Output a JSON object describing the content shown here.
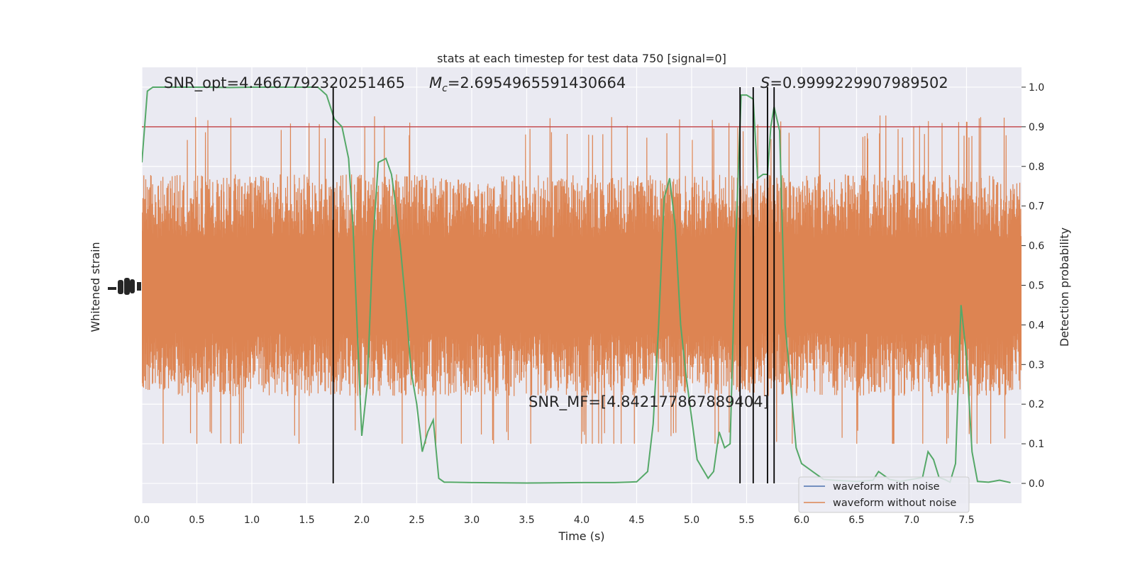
{
  "chart_data": {
    "type": "line",
    "title": "stats at each timestep for test data 750 [signal=0]",
    "xlabel": "Time (s)",
    "ylabel_left": "Whitened strain",
    "ylabel_right": "Detection probability",
    "xlim": [
      0,
      8
    ],
    "ylim_right": [
      -0.05,
      1.05
    ],
    "x_ticks": [
      "0.0",
      "0.5",
      "1.0",
      "1.5",
      "2.0",
      "2.5",
      "3.0",
      "3.5",
      "4.0",
      "4.5",
      "5.0",
      "5.5",
      "6.0",
      "6.5",
      "7.0",
      "7.5"
    ],
    "y_ticks_right": [
      "0.0",
      "0.1",
      "0.2",
      "0.3",
      "0.4",
      "0.5",
      "0.6",
      "0.7",
      "0.8",
      "0.9",
      "1.0"
    ],
    "annotations": {
      "snr_opt": "SNR_opt=4.4667792320251465",
      "mc": "=2.6954965591430664",
      "s": "=0.9999229907989502",
      "snr_mf": "SNR_MF=[4.842177867889404]"
    },
    "threshold": 0.9,
    "vlines": [
      1.74,
      5.44,
      5.56,
      5.69,
      5.75
    ],
    "legend": {
      "placement": "lower-right",
      "entries": [
        "waveform with noise",
        "waveform without noise"
      ]
    },
    "series": [
      {
        "name": "waveform with noise",
        "color": "#4c72b0",
        "values": []
      },
      {
        "name": "waveform without noise",
        "color": "#dd8452",
        "envelope_prob_units": [
          0.3,
          0.7
        ],
        "peak_range_prob_units": [
          0.1,
          0.96
        ]
      },
      {
        "color": "#55a868",
        "x": [
          0.0,
          0.05,
          0.1,
          0.2,
          0.4,
          0.6,
          0.8,
          1.0,
          1.2,
          1.4,
          1.6,
          1.68,
          1.75,
          1.82,
          1.88,
          1.92,
          1.96,
          2.0,
          2.05,
          2.1,
          2.15,
          2.22,
          2.27,
          2.3,
          2.35,
          2.4,
          2.45,
          2.5,
          2.55,
          2.6,
          2.65,
          2.7,
          2.75,
          2.8,
          3.0,
          3.5,
          4.0,
          4.3,
          4.5,
          4.6,
          4.65,
          4.7,
          4.75,
          4.8,
          4.85,
          4.9,
          4.95,
          5.05,
          5.15,
          5.2,
          5.25,
          5.3,
          5.35,
          5.4,
          5.45,
          5.5,
          5.56,
          5.6,
          5.65,
          5.69,
          5.72,
          5.75,
          5.8,
          5.85,
          5.9,
          5.95,
          6.0,
          6.1,
          6.2,
          6.3,
          6.5,
          6.65,
          6.7,
          6.8,
          6.9,
          7.0,
          7.1,
          7.15,
          7.2,
          7.25,
          7.3,
          7.35,
          7.4,
          7.45,
          7.5,
          7.55,
          7.6,
          7.7,
          7.8,
          7.9
        ],
        "values": [
          0.81,
          0.99,
          1.0,
          1.0,
          1.0,
          1.0,
          0.999,
          1.0,
          1.0,
          1.0,
          1.0,
          0.98,
          0.92,
          0.9,
          0.82,
          0.65,
          0.38,
          0.12,
          0.25,
          0.6,
          0.81,
          0.82,
          0.78,
          0.72,
          0.6,
          0.45,
          0.28,
          0.2,
          0.08,
          0.13,
          0.16,
          0.013,
          0.003,
          0.003,
          0.002,
          0.001,
          0.002,
          0.002,
          0.004,
          0.03,
          0.15,
          0.4,
          0.72,
          0.77,
          0.65,
          0.4,
          0.27,
          0.06,
          0.013,
          0.03,
          0.13,
          0.09,
          0.1,
          0.6,
          0.98,
          0.98,
          0.97,
          0.77,
          0.78,
          0.78,
          0.9,
          0.95,
          0.89,
          0.4,
          0.25,
          0.09,
          0.05,
          0.03,
          0.01,
          0.008,
          0.005,
          0.008,
          0.03,
          0.01,
          0.005,
          0.01,
          0.015,
          0.08,
          0.06,
          0.015,
          0.01,
          0.003,
          0.05,
          0.45,
          0.32,
          0.08,
          0.005,
          0.003,
          0.008,
          0.002
        ]
      }
    ]
  }
}
